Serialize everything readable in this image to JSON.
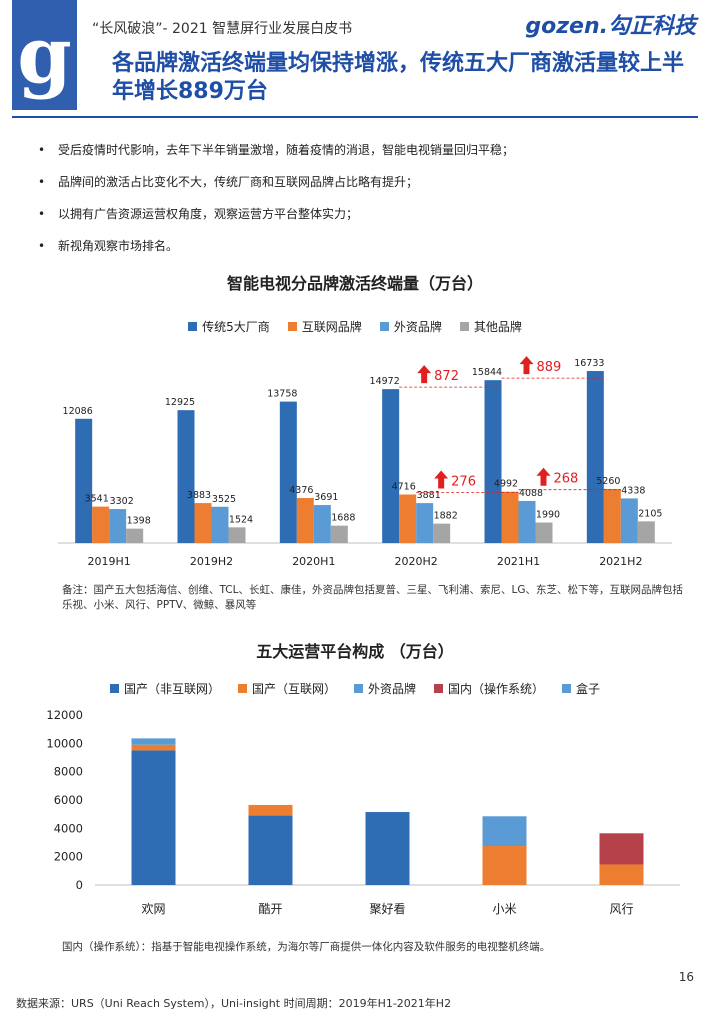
{
  "header": {
    "logo_letter": "g",
    "series_title": "“长风破浪”- 2021 智慧屏行业发展白皮书",
    "brand": "gozen.勾正科技",
    "headline": "各品牌激活终端量均保持增涨，传统五大厂商激活量较上半年增长889万台"
  },
  "bullets": [
    "受后疫情时代影响，去年下半年销量激增，随着疫情的消退，智能电视销量回归平稳；",
    "品牌间的激活占比变化不大，传统厂商和互联网品牌占比略有提升；",
    "以拥有广告资源运营权角度，观察运营方平台整体实力；",
    "新视角观察市场排名。"
  ],
  "chart1_note": "备注：国产五大包括海信、创维、TCL、长虹、康佳，外资品牌包括夏普、三星、飞利浦、索尼、LG、东芝、松下等，互联网品牌包括乐视、小米、风行、PPTV、微鲸、暴风等",
  "chart2_note": "国内（操作系统）：指基于智能电视操作系统，为海尔等厂商提供一体化内容及软件服务的电视整机终端。",
  "page_number": "16",
  "source": "数据来源：URS（Uni Reach System），Uni-insight 时间周期：2019年H1-2021年H2",
  "chart_data": [
    {
      "type": "bar",
      "title": "智能电视分品牌激活终端量（万台）",
      "categories": [
        "2019H1",
        "2019H2",
        "2020H1",
        "2020H2",
        "2021H1",
        "2021H2"
      ],
      "series": [
        {
          "name": "传统5大厂商",
          "color": "#2e6db4",
          "values": [
            12086,
            12925,
            13758,
            14972,
            15844,
            16733
          ]
        },
        {
          "name": "互联网品牌",
          "color": "#ed7d31",
          "values": [
            3541,
            3883,
            4376,
            4716,
            4992,
            5260
          ]
        },
        {
          "name": "外资品牌",
          "color": "#5b9bd5",
          "values": [
            3302,
            3525,
            3691,
            3881,
            4088,
            4338
          ]
        },
        {
          "name": "其他品牌",
          "color": "#a5a5a5",
          "values": [
            1398,
            1524,
            1688,
            1882,
            1990,
            2105
          ]
        }
      ],
      "annotations": [
        {
          "category": "2020H2",
          "series": "传统5大厂商",
          "text": "872"
        },
        {
          "category": "2021H1",
          "series": "传统5大厂商",
          "text": "889"
        },
        {
          "category": "2020H2",
          "series": "互联网品牌",
          "text": "276"
        },
        {
          "category": "2021H1",
          "series": "互联网品牌",
          "text": "268"
        }
      ],
      "annotation_color": "#e02020",
      "ylim": [
        0,
        18000
      ]
    },
    {
      "type": "bar",
      "stacked": true,
      "title": "五大运营平台构成 （万台）",
      "categories": [
        "欢网",
        "酷开",
        "聚好看",
        "小米",
        "风行"
      ],
      "series": [
        {
          "name": "国产（非互联网）",
          "color": "#2e6db4",
          "values": [
            9500,
            4900,
            5150,
            0,
            0
          ]
        },
        {
          "name": "国产（互联网）",
          "color": "#ed7d31",
          "values": [
            400,
            750,
            0,
            2750,
            1450
          ]
        },
        {
          "name": "外资品牌",
          "color": "#5b9bd5",
          "values": [
            0,
            0,
            0,
            2100,
            0
          ]
        },
        {
          "name": "国内（操作系统）",
          "color": "#b5424a",
          "values": [
            0,
            0,
            0,
            0,
            2200
          ]
        },
        {
          "name": "盒子",
          "color": "#5b9bd5",
          "values": [
            450,
            0,
            0,
            0,
            0
          ]
        }
      ],
      "yticks": [
        "0",
        "2000",
        "4000",
        "6000",
        "8000",
        "10000",
        "12000"
      ],
      "ylim": [
        0,
        12000
      ]
    }
  ]
}
